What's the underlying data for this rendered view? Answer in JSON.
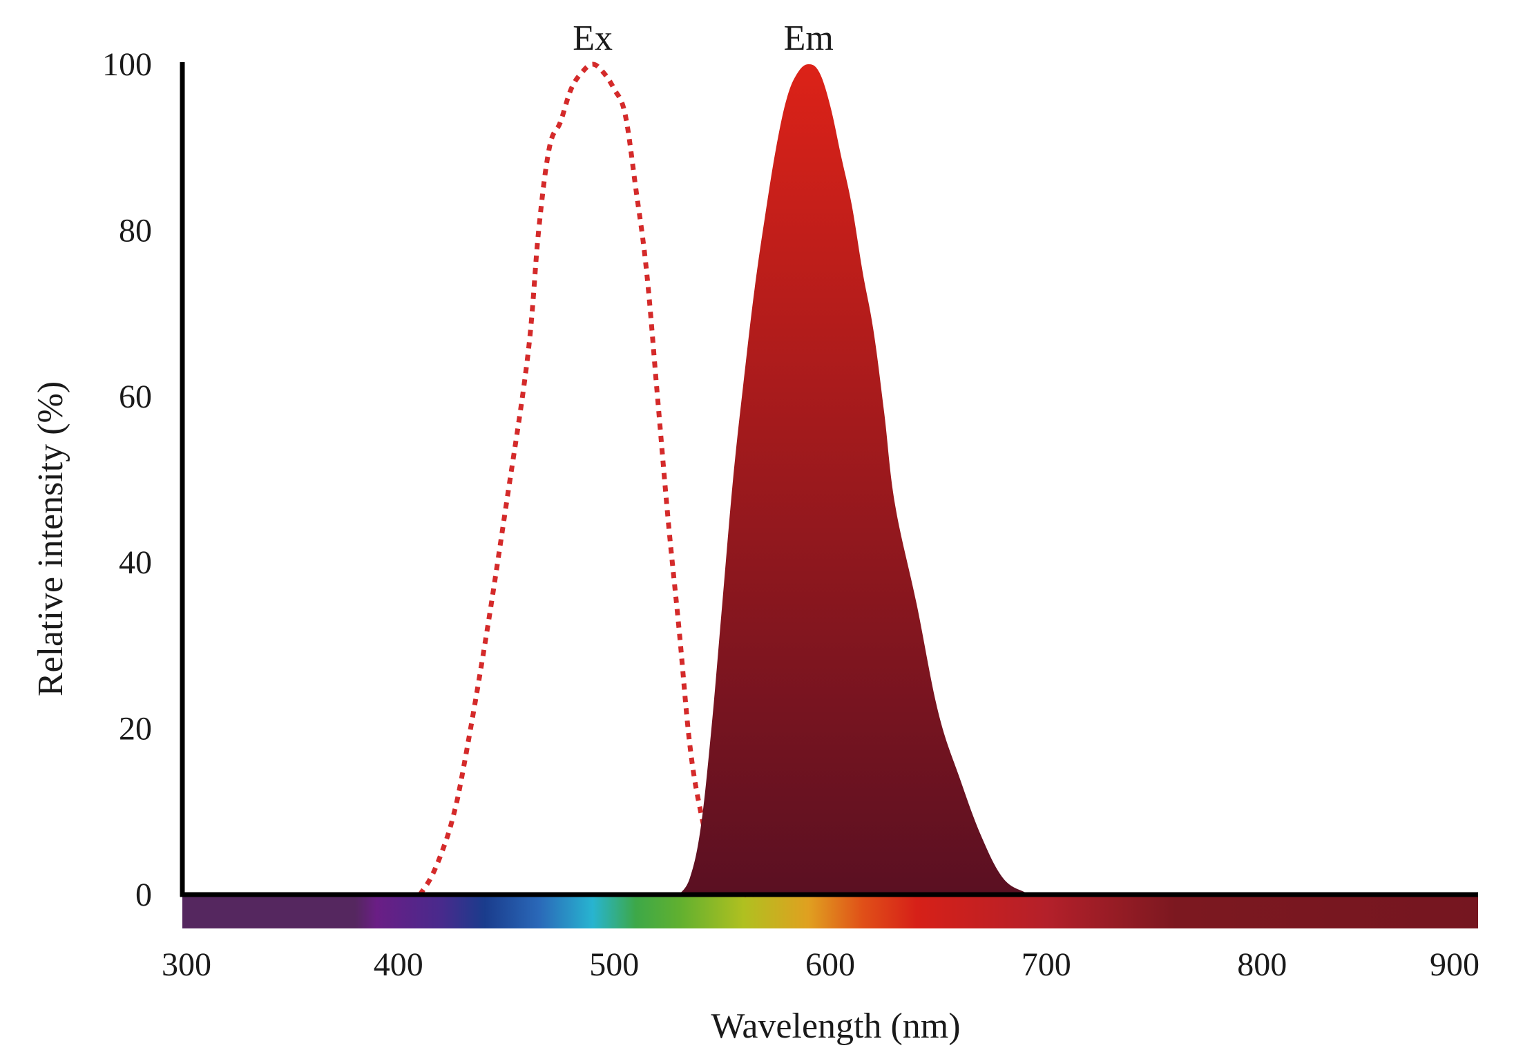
{
  "chart_data": {
    "type": "area",
    "xlabel": "Wavelength (nm)",
    "ylabel": "Relative intensity (%)",
    "xlim": [
      300,
      900
    ],
    "ylim": [
      0,
      100
    ],
    "x_ticks": [
      300,
      400,
      500,
      600,
      700,
      800,
      900
    ],
    "y_ticks": [
      0,
      20,
      40,
      60,
      80,
      100
    ],
    "grid": false,
    "legend": "none",
    "series": [
      {
        "name": "Ex",
        "style": "dotted-line",
        "color": "#d42a2a",
        "x": [
          410,
          415,
          420,
          425,
          430,
          440,
          450,
          460,
          465,
          470,
          475,
          480,
          485,
          490,
          495,
          500,
          505,
          510,
          515,
          520,
          525,
          530,
          535,
          540,
          545,
          550,
          555,
          560,
          565
        ],
        "y": [
          0,
          2,
          5,
          9,
          15,
          30,
          47,
          65,
          80,
          90,
          93,
          97,
          99,
          100,
          99,
          97,
          94,
          85,
          75,
          60,
          45,
          32,
          18,
          10,
          5,
          2,
          0.5,
          0,
          0
        ]
      },
      {
        "name": "Em",
        "style": "filled-area",
        "gradient_top": "#dc2218",
        "gradient_bottom": "#5a1022",
        "x": [
          530,
          535,
          540,
          545,
          550,
          555,
          560,
          565,
          570,
          575,
          580,
          585,
          590,
          595,
          600,
          605,
          610,
          615,
          620,
          625,
          630,
          640,
          650,
          660,
          670,
          680,
          690,
          695
        ],
        "y": [
          0,
          2,
          8,
          20,
          35,
          50,
          62,
          73,
          82,
          90,
          96,
          99,
          100,
          99,
          95,
          89,
          83,
          75,
          68,
          58,
          47,
          35,
          22,
          14,
          7,
          2,
          0.3,
          0
        ]
      }
    ],
    "spectrum_bar": {
      "stops": [
        {
          "wl": 300,
          "color": "#55275f"
        },
        {
          "wl": 380,
          "color": "#55275f"
        },
        {
          "wl": 390,
          "color": "#6a1e85"
        },
        {
          "wl": 420,
          "color": "#482a8c"
        },
        {
          "wl": 440,
          "color": "#1a3c8c"
        },
        {
          "wl": 465,
          "color": "#2a68b8"
        },
        {
          "wl": 490,
          "color": "#28b4d0"
        },
        {
          "wl": 510,
          "color": "#3da848"
        },
        {
          "wl": 530,
          "color": "#60b030"
        },
        {
          "wl": 560,
          "color": "#b0c020"
        },
        {
          "wl": 590,
          "color": "#e0a020"
        },
        {
          "wl": 615,
          "color": "#e05018"
        },
        {
          "wl": 640,
          "color": "#d62018"
        },
        {
          "wl": 700,
          "color": "#b4202a"
        },
        {
          "wl": 760,
          "color": "#7c1820"
        },
        {
          "wl": 900,
          "color": "#751620"
        }
      ]
    }
  }
}
